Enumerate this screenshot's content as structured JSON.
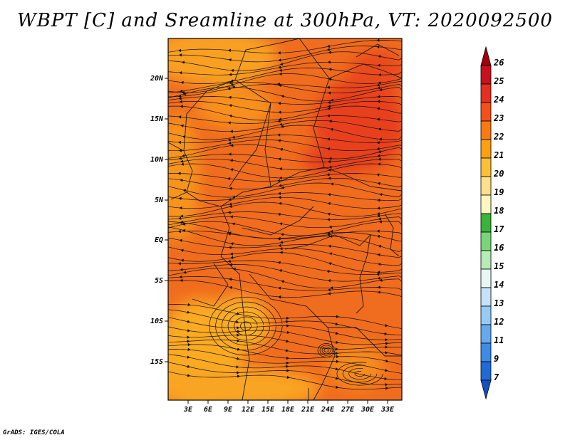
{
  "title": "WBPT [C] and Sreamline at 300hPa, VT: 2020092500",
  "credit": "GrADS: IGES/COLA",
  "lat_labels": [
    "20N",
    "15N",
    "10N",
    "5N",
    "EQ",
    "5S",
    "10S",
    "15S"
  ],
  "lon_labels": [
    "3E",
    "6E",
    "9E",
    "12E",
    "15E",
    "18E",
    "21E",
    "24E",
    "27E",
    "30E",
    "33E"
  ],
  "colorbar": {
    "labels": [
      "26",
      "25",
      "24",
      "23",
      "22",
      "21",
      "20",
      "19",
      "18",
      "17",
      "16",
      "15",
      "14",
      "13",
      "12",
      "11",
      "9",
      "7"
    ],
    "colors": [
      "#a0000e",
      "#c8101e",
      "#e4301e",
      "#f5501a",
      "#fa7a10",
      "#fca012",
      "#fcc036",
      "#fde08a",
      "#fff6c0",
      "#39b539",
      "#78d678",
      "#b6ecb6",
      "#e6f8f4",
      "#c4e2f8",
      "#96cbf4",
      "#64aaee",
      "#3c8ce6",
      "#206ad8",
      "#1450c0"
    ]
  },
  "field": {
    "background": "#f06c1e",
    "blobs": [
      {
        "label": "dark red core NE",
        "color": "#e4401c"
      },
      {
        "label": "warm band north",
        "color": "#fca012"
      },
      {
        "label": "gyre south",
        "color": "#fcaa1e"
      }
    ]
  }
}
